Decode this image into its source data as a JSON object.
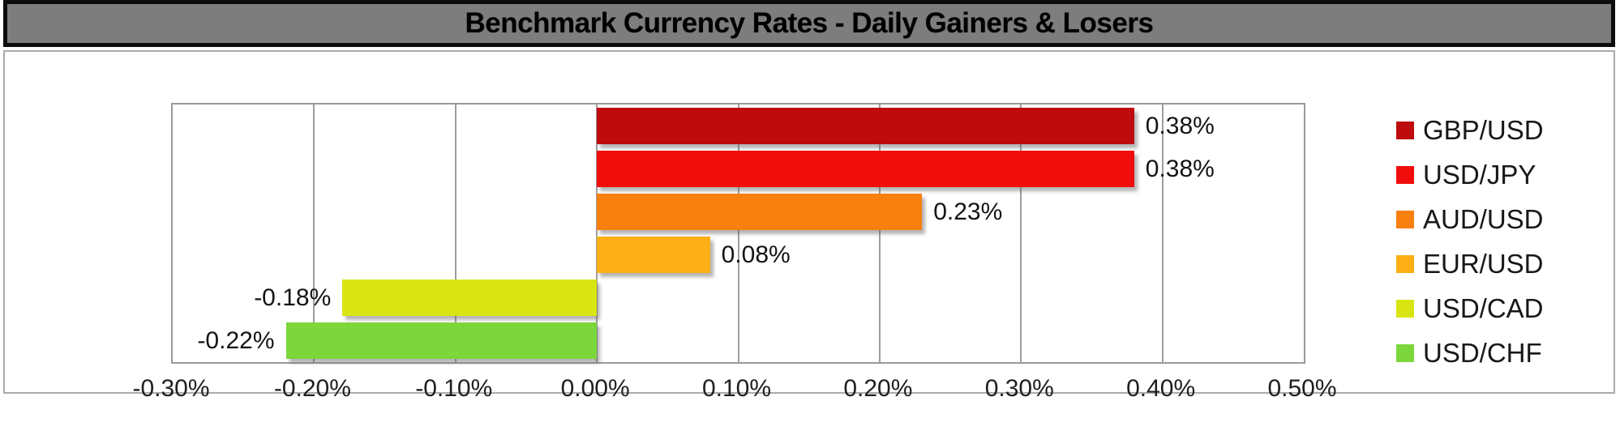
{
  "title": "Benchmark Currency Rates - Daily Gainers & Losers",
  "colors": {
    "title_bar_bg": "#7d7d7d",
    "title_text": "#000000",
    "gridline": "#9e9e9e",
    "axis_text": "#1f1f1f",
    "positive_label": "#141414"
  },
  "chart_data": {
    "type": "bar",
    "orientation": "horizontal",
    "title": "Benchmark Currency Rates - Daily Gainers & Losers",
    "grid": true,
    "legend_position": "right",
    "series": [
      {
        "name": "GBP/USD",
        "value": 0.38,
        "label": "0.38%",
        "color": "#bd0b0e"
      },
      {
        "name": "USD/JPY",
        "value": 0.38,
        "label": "0.38%",
        "color": "#f20d0d"
      },
      {
        "name": "AUD/USD",
        "value": 0.23,
        "label": "0.23%",
        "color": "#f8800f"
      },
      {
        "name": "EUR/USD",
        "value": 0.08,
        "label": "0.08%",
        "color": "#fbaf15"
      },
      {
        "name": "USD/CAD",
        "value": -0.18,
        "label": "-0.18%",
        "color": "#d9e512"
      },
      {
        "name": "USD/CHF",
        "value": -0.22,
        "label": "-0.22%",
        "color": "#7cd63c"
      }
    ],
    "x_axis": {
      "min": -0.3,
      "max": 0.5,
      "tick_step": 0.1,
      "tick_labels": [
        "-0.30%",
        "-0.20%",
        "-0.10%",
        "0.00%",
        "0.10%",
        "0.20%",
        "0.30%",
        "0.40%",
        "0.50%"
      ]
    }
  }
}
